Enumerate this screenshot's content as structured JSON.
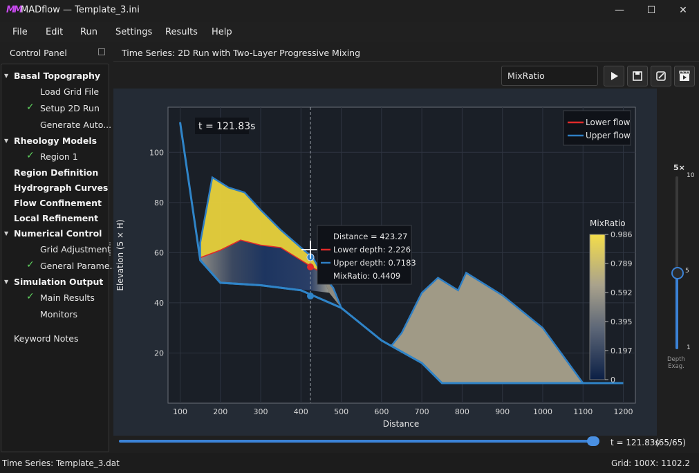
{
  "window": {
    "title": "MADflow — Template_3.ini",
    "minimize": "—",
    "maximize": "☐",
    "close": "✕"
  },
  "menu": [
    "File",
    "Edit",
    "Run",
    "Settings",
    "Results",
    "Help"
  ],
  "sidebar": {
    "title": "Control Panel",
    "items": [
      {
        "label": "Basal Topography",
        "level": 0,
        "expandable": true
      },
      {
        "label": "Load Grid File",
        "level": 1,
        "checked": false
      },
      {
        "label": "Setup 2D Run",
        "level": 1,
        "checked": true
      },
      {
        "label": "Generate Auto...",
        "level": 1,
        "checked": false
      },
      {
        "label": "Rheology Models",
        "level": 0,
        "expandable": true
      },
      {
        "label": "Region 1",
        "level": 1,
        "checked": true
      },
      {
        "label": "Region Definition",
        "level": 0,
        "expandable": false
      },
      {
        "label": "Hydrograph Curves",
        "level": 0,
        "expandable": false
      },
      {
        "label": "Flow Confinement",
        "level": 0,
        "expandable": false
      },
      {
        "label": "Local Refinement",
        "level": 0,
        "expandable": false
      },
      {
        "label": "Numerical Control",
        "level": 0,
        "expandable": true
      },
      {
        "label": "Grid Adjustment",
        "level": 1,
        "checked": false
      },
      {
        "label": "General Parame...",
        "level": 1,
        "checked": true
      },
      {
        "label": "Simulation Output",
        "level": 0,
        "expandable": true
      },
      {
        "label": "Main Results",
        "level": 1,
        "checked": true
      },
      {
        "label": "Monitors",
        "level": 1,
        "checked": false
      },
      {
        "label": "Keyword Notes",
        "level": 0,
        "expandable": false
      }
    ]
  },
  "tab": {
    "title": "Time Series: 2D Run with Two-Layer Progressive Mixing"
  },
  "toolbar": {
    "variable_select": "MixRatio",
    "buttons": [
      "play-icon",
      "save-icon",
      "edit-icon",
      "movie-icon"
    ]
  },
  "plot": {
    "time_label": "t = 121.83s",
    "xlabel": "Distance",
    "ylabel": "Elevation (5 × H)",
    "xticks": [
      "100",
      "200",
      "300",
      "400",
      "500",
      "600",
      "700",
      "800",
      "900",
      "1000",
      "1100",
      "1200"
    ],
    "yticks": [
      "20",
      "40",
      "60",
      "80",
      "100"
    ],
    "legend": [
      "Lower flow",
      "Upper flow"
    ],
    "colorbar": {
      "title": "MixRatio",
      "ticks": [
        "0.986",
        "0.789",
        "0.592",
        "0.395",
        "0.197",
        "0"
      ]
    },
    "tooltip": {
      "distance": "Distance = 423.27",
      "lower": "Lower depth:  2.226",
      "upper": "Upper depth:  0.7183",
      "mix": "MixRatio:  0.4409"
    },
    "colors": {
      "lower": "#e02a2a",
      "upper": "#2f7fc4",
      "bed": "#2f84c8",
      "yellow": "#e8d23c",
      "navy": "#1d3560",
      "grey": "#a09a86"
    }
  },
  "chart_data": {
    "type": "area",
    "xlabel": "Distance",
    "ylabel": "Elevation (5 × H)",
    "xlim": [
      70,
      1230
    ],
    "ylim": [
      0,
      118
    ],
    "series": [
      {
        "name": "Lower flow",
        "x": [
          150,
          200,
          250,
          300,
          350,
          400,
          420,
          450
        ],
        "y": [
          58,
          61,
          65,
          63,
          62,
          57,
          55,
          52
        ]
      },
      {
        "name": "Upper flow",
        "x": [
          150,
          180,
          220,
          260,
          300,
          350,
          400,
          430
        ],
        "y": [
          64,
          90,
          86,
          84,
          77,
          69,
          62,
          58
        ]
      }
    ],
    "bed": {
      "x": [
        100,
        150,
        200,
        300,
        400,
        500,
        600,
        700,
        750,
        900,
        1100,
        1200
      ],
      "y": [
        112,
        57,
        48,
        47,
        45,
        38,
        25,
        16,
        8,
        8,
        8,
        8
      ]
    },
    "cursor": {
      "distance": 423.27,
      "lower_depth": 2.226,
      "upper_depth": 0.7183,
      "mix_ratio": 0.4409
    },
    "legend": "top-right",
    "grid": true
  },
  "slider_depth": {
    "title": "5×",
    "max": "10",
    "mid": "5",
    "min": "1",
    "label": "Depth\nExag.",
    "value": 5
  },
  "timeline": {
    "value_text": "t = 121.83s",
    "count": "(65/65)",
    "fraction": 1.0
  },
  "status": {
    "left": "Time Series: Template_3.dat",
    "grid": "Grid: 100",
    "x": "X: 1102.2"
  }
}
